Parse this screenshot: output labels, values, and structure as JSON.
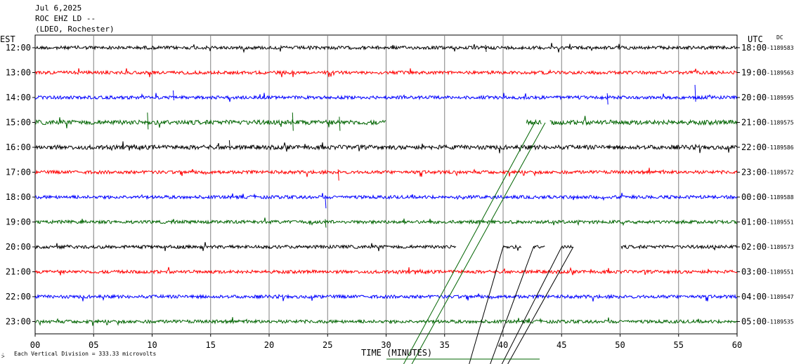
{
  "header": {
    "date": "Jul 6,2025",
    "station": "ROC EHZ LD --",
    "network": "(LDEO, Rochester)"
  },
  "chart_data": {
    "type": "line",
    "left_axis_title": "EST",
    "right_axis_title": "UTC",
    "dc_label": "DC",
    "xlabel": "TIME (MINUTES)",
    "xlim": [
      0,
      60
    ],
    "x_ticks": [
      "00",
      "05",
      "10",
      "15",
      "20",
      "25",
      "30",
      "35",
      "40",
      "45",
      "50",
      "55",
      "60"
    ],
    "scale_note": "Each Vertical Division =  333.33 microvolts",
    "colors": [
      "#000000",
      "#ff0000",
      "#0000ff",
      "#006400"
    ],
    "rows": [
      {
        "est": "12:00",
        "utc": "18:00",
        "dc": "-1189583",
        "segments": [
          [
            0,
            60
          ]
        ]
      },
      {
        "est": "13:00",
        "utc": "19:00",
        "dc": "-1189563",
        "segments": [
          [
            0,
            60
          ]
        ]
      },
      {
        "est": "14:00",
        "utc": "20:00",
        "dc": "-1189595",
        "segments": [
          [
            0,
            60
          ]
        ]
      },
      {
        "est": "15:00",
        "utc": "21:00",
        "dc": "-1189575",
        "segments": [
          [
            0,
            30
          ],
          [
            42.0,
            43.3
          ],
          [
            44.0,
            60
          ]
        ]
      },
      {
        "est": "16:00",
        "utc": "22:00",
        "dc": "-1189586",
        "segments": [
          [
            0,
            60
          ]
        ]
      },
      {
        "est": "17:00",
        "utc": "23:00",
        "dc": "-1189572",
        "segments": [
          [
            0,
            60
          ]
        ]
      },
      {
        "est": "18:00",
        "utc": "00:00",
        "dc": "-1189588",
        "segments": [
          [
            0,
            60
          ]
        ]
      },
      {
        "est": "19:00",
        "utc": "01:00",
        "dc": "-1189551",
        "segments": [
          [
            0,
            60
          ]
        ]
      },
      {
        "est": "20:00",
        "utc": "02:00",
        "dc": "-1189573",
        "segments": [
          [
            0,
            36
          ],
          [
            40.0,
            41.6
          ],
          [
            42.6,
            43.6
          ],
          [
            45.0,
            46.0
          ],
          [
            50.1,
            60
          ]
        ]
      },
      {
        "est": "21:00",
        "utc": "03:00",
        "dc": "-1189551",
        "segments": [
          [
            0,
            60
          ]
        ]
      },
      {
        "est": "22:00",
        "utc": "04:00",
        "dc": "-1189547",
        "segments": [
          [
            0,
            60
          ]
        ]
      },
      {
        "est": "23:00",
        "utc": "05:00",
        "dc": "-1189535",
        "segments": [
          [
            0,
            60
          ]
        ]
      }
    ]
  }
}
